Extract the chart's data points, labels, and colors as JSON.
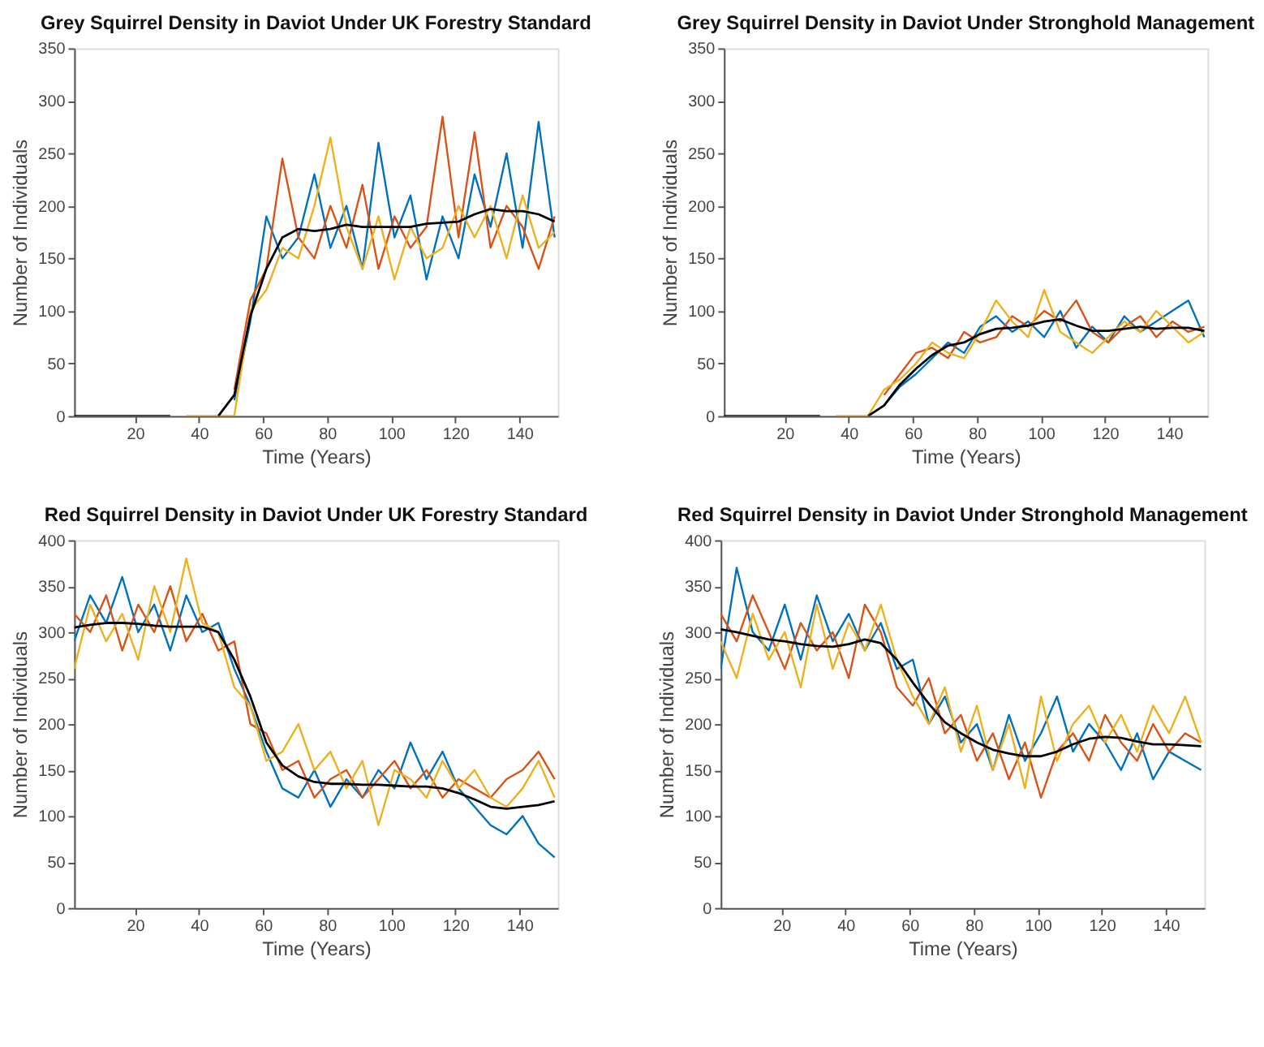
{
  "chart_data": [
    {
      "type": "line",
      "title": "Grey Squirrel Density in Daviot Under UK Forestry Standard",
      "xlabel": "Time (Years)",
      "ylabel": "Number of Individuals",
      "xlim": [
        1,
        152
      ],
      "xticks": [
        20,
        40,
        60,
        80,
        100,
        120,
        140
      ],
      "ylim": [
        0,
        350
      ],
      "yticks": [
        0,
        50,
        100,
        150,
        200,
        250,
        300,
        350
      ],
      "grid": false,
      "marker": "none",
      "line_style": "solid",
      "x": [
        1,
        6,
        11,
        16,
        21,
        26,
        31,
        36,
        41,
        46,
        51,
        56,
        61,
        66,
        71,
        76,
        81,
        86,
        91,
        96,
        101,
        106,
        111,
        116,
        121,
        126,
        131,
        136,
        141,
        146,
        151
      ],
      "series": [
        {
          "color": "#0072bd",
          "values": [
            null,
            null,
            null,
            null,
            null,
            null,
            null,
            null,
            null,
            null,
            15,
            90,
            190,
            150,
            170,
            230,
            160,
            200,
            140,
            260,
            170,
            210,
            130,
            190,
            150,
            230,
            180,
            250,
            160,
            280,
            170
          ]
        },
        {
          "color": "#d95319",
          "values": [
            null,
            null,
            null,
            null,
            null,
            null,
            null,
            null,
            null,
            null,
            25,
            110,
            140,
            245,
            170,
            150,
            200,
            160,
            220,
            140,
            190,
            160,
            180,
            285,
            170,
            270,
            160,
            200,
            180,
            140,
            190
          ]
        },
        {
          "color": "#edb120",
          "values": [
            null,
            null,
            null,
            null,
            null,
            null,
            null,
            0,
            0,
            0,
            0,
            100,
            120,
            160,
            150,
            200,
            265,
            180,
            140,
            190,
            130,
            180,
            150,
            160,
            200,
            170,
            200,
            150,
            210,
            160,
            175
          ]
        },
        {
          "color": "#000000",
          "values": [
            0,
            0,
            0,
            0,
            0,
            0,
            0,
            null,
            null,
            0,
            20,
            95,
            140,
            170,
            178,
            176,
            178,
            182,
            180,
            180,
            180,
            180,
            183,
            184,
            185,
            192,
            197,
            195,
            195,
            192,
            185
          ]
        }
      ]
    },
    {
      "type": "line",
      "title": "Grey Squirrel Density in Daviot Under Stronghold Management",
      "xlabel": "Time (Years)",
      "ylabel": "Number of Individuals",
      "xlim": [
        1,
        152
      ],
      "xticks": [
        20,
        40,
        60,
        80,
        100,
        120,
        140
      ],
      "ylim": [
        0,
        350
      ],
      "yticks": [
        0,
        50,
        100,
        150,
        200,
        250,
        300,
        350
      ],
      "grid": false,
      "marker": "none",
      "line_style": "solid",
      "x": [
        1,
        6,
        11,
        16,
        21,
        26,
        31,
        36,
        41,
        46,
        51,
        56,
        61,
        66,
        71,
        76,
        81,
        86,
        91,
        96,
        101,
        106,
        111,
        116,
        121,
        126,
        131,
        136,
        141,
        146,
        151
      ],
      "series": [
        {
          "color": "#0072bd",
          "values": [
            null,
            null,
            null,
            null,
            null,
            null,
            null,
            null,
            null,
            null,
            10,
            28,
            40,
            55,
            70,
            60,
            85,
            95,
            80,
            90,
            75,
            100,
            65,
            85,
            70,
            95,
            80,
            90,
            100,
            110,
            75
          ]
        },
        {
          "color": "#d95319",
          "values": [
            null,
            null,
            null,
            null,
            null,
            null,
            null,
            null,
            null,
            null,
            20,
            40,
            60,
            65,
            55,
            80,
            70,
            75,
            95,
            85,
            100,
            90,
            110,
            80,
            70,
            85,
            95,
            75,
            90,
            80,
            85
          ]
        },
        {
          "color": "#edb120",
          "values": [
            null,
            null,
            null,
            null,
            null,
            null,
            null,
            0,
            0,
            0,
            25,
            35,
            50,
            70,
            60,
            55,
            80,
            110,
            90,
            75,
            120,
            80,
            70,
            60,
            75,
            90,
            80,
            100,
            85,
            70,
            80
          ]
        },
        {
          "color": "#000000",
          "values": [
            0,
            0,
            0,
            0,
            0,
            0,
            0,
            null,
            null,
            0,
            10,
            30,
            45,
            58,
            67,
            70,
            78,
            83,
            84,
            86,
            90,
            92,
            86,
            81,
            81,
            83,
            85,
            83,
            84,
            84,
            81
          ]
        }
      ]
    },
    {
      "type": "line",
      "title": "Red Squirrel Density in Daviot Under UK Forestry Standard",
      "xlabel": "Time (Years)",
      "ylabel": "Number of Individuals",
      "xlim": [
        1,
        152
      ],
      "xticks": [
        20,
        40,
        60,
        80,
        100,
        120,
        140
      ],
      "ylim": [
        0,
        400
      ],
      "yticks": [
        0,
        50,
        100,
        150,
        200,
        250,
        300,
        350,
        400
      ],
      "grid": false,
      "marker": "none",
      "line_style": "solid",
      "x": [
        1,
        6,
        11,
        16,
        21,
        26,
        31,
        36,
        41,
        46,
        51,
        56,
        61,
        66,
        71,
        76,
        81,
        86,
        91,
        96,
        101,
        106,
        111,
        116,
        121,
        126,
        131,
        136,
        141,
        146,
        151
      ],
      "series": [
        {
          "color": "#0072bd",
          "values": [
            290,
            340,
            310,
            360,
            300,
            330,
            280,
            340,
            300,
            310,
            260,
            220,
            170,
            130,
            120,
            150,
            110,
            140,
            120,
            150,
            130,
            180,
            140,
            170,
            130,
            110,
            90,
            80,
            100,
            70,
            55
          ]
        },
        {
          "color": "#d95319",
          "values": [
            320,
            300,
            340,
            280,
            330,
            300,
            350,
            290,
            320,
            280,
            290,
            200,
            190,
            150,
            160,
            120,
            140,
            150,
            120,
            140,
            160,
            130,
            150,
            120,
            140,
            130,
            120,
            140,
            150,
            170,
            140
          ]
        },
        {
          "color": "#edb120",
          "values": [
            260,
            330,
            290,
            320,
            270,
            350,
            300,
            380,
            310,
            300,
            240,
            220,
            160,
            170,
            200,
            150,
            170,
            130,
            160,
            90,
            150,
            140,
            120,
            160,
            130,
            150,
            120,
            110,
            130,
            160,
            120
          ]
        },
        {
          "color": "#000000",
          "values": [
            305,
            308,
            310,
            310,
            309,
            307,
            306,
            306,
            306,
            300,
            270,
            230,
            180,
            155,
            143,
            137,
            135,
            135,
            134,
            134,
            133,
            132,
            132,
            130,
            125,
            118,
            110,
            108,
            110,
            112,
            116
          ]
        }
      ]
    },
    {
      "type": "line",
      "title": "Red Squirrel Density in Daviot Under Stronghold Management",
      "xlabel": "Time (Years)",
      "ylabel": "Number of Individuals",
      "xlim": [
        1,
        152
      ],
      "xticks": [
        20,
        40,
        60,
        80,
        100,
        120,
        140
      ],
      "ylim": [
        0,
        400
      ],
      "yticks": [
        0,
        50,
        100,
        150,
        200,
        250,
        300,
        350,
        400
      ],
      "grid": false,
      "marker": "none",
      "line_style": "solid",
      "x": [
        1,
        6,
        11,
        16,
        21,
        26,
        31,
        36,
        41,
        46,
        51,
        56,
        61,
        66,
        71,
        76,
        81,
        86,
        91,
        96,
        101,
        106,
        111,
        116,
        121,
        126,
        131,
        136,
        141,
        146,
        151
      ],
      "series": [
        {
          "color": "#0072bd",
          "values": [
            260,
            370,
            300,
            280,
            330,
            270,
            340,
            290,
            320,
            280,
            310,
            260,
            270,
            200,
            230,
            180,
            200,
            150,
            210,
            160,
            190,
            230,
            170,
            200,
            180,
            150,
            190,
            140,
            170,
            160,
            150
          ]
        },
        {
          "color": "#d95319",
          "values": [
            320,
            290,
            340,
            300,
            260,
            310,
            280,
            300,
            250,
            330,
            300,
            240,
            220,
            250,
            190,
            210,
            160,
            190,
            140,
            180,
            120,
            170,
            190,
            160,
            210,
            180,
            160,
            200,
            170,
            190,
            180
          ]
        },
        {
          "color": "#edb120",
          "values": [
            290,
            250,
            320,
            270,
            300,
            240,
            330,
            260,
            310,
            280,
            330,
            270,
            230,
            200,
            240,
            170,
            220,
            150,
            200,
            130,
            230,
            160,
            200,
            220,
            180,
            210,
            170,
            220,
            190,
            230,
            180
          ]
        },
        {
          "color": "#000000",
          "values": [
            303,
            300,
            296,
            292,
            290,
            287,
            285,
            284,
            287,
            292,
            288,
            270,
            245,
            222,
            202,
            190,
            180,
            172,
            168,
            165,
            165,
            170,
            178,
            184,
            186,
            185,
            181,
            178,
            178,
            177,
            176
          ]
        }
      ]
    }
  ]
}
